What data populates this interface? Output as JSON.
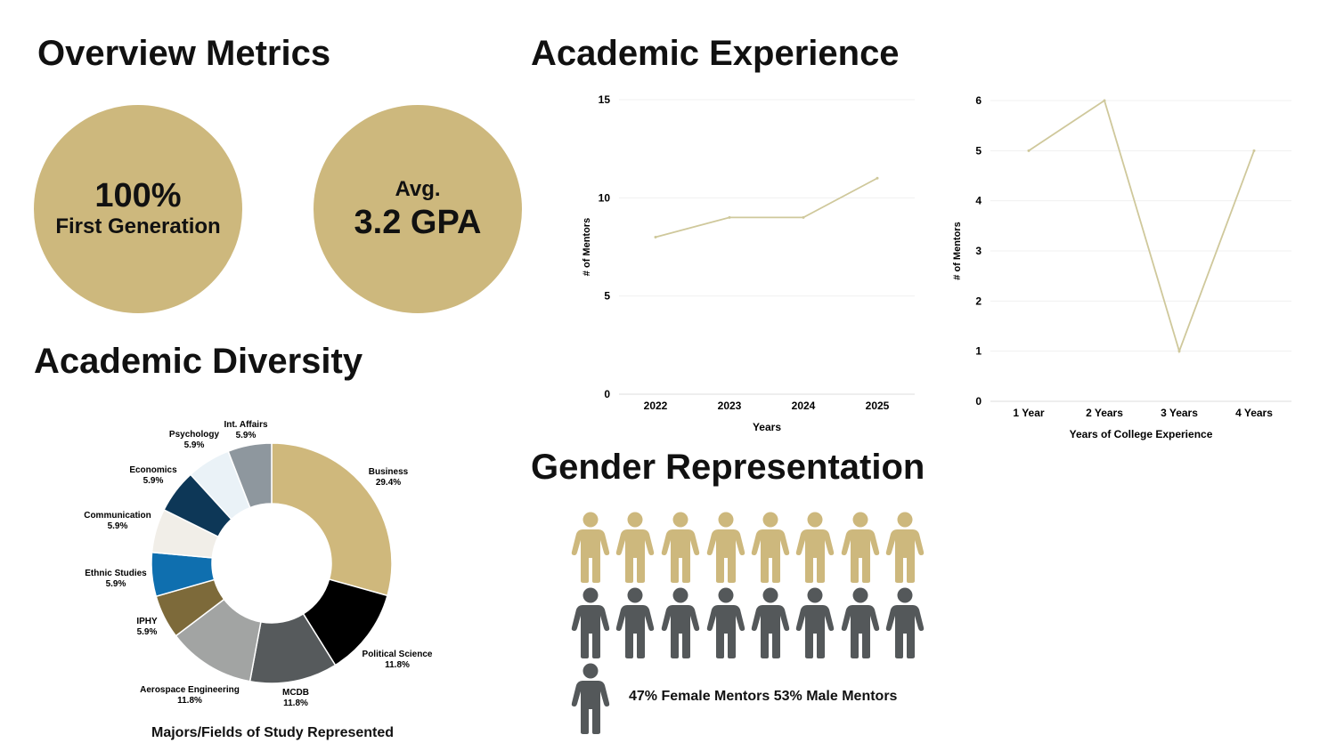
{
  "headings": {
    "overview": "Overview Metrics",
    "experience": "Academic Experience",
    "diversity": "Academic Diversity",
    "gender": "Gender Representation"
  },
  "metrics": [
    {
      "line1": "100%",
      "line2": "First Generation"
    },
    {
      "line1": "Avg.",
      "line2": "3.2 GPA"
    }
  ],
  "colors": {
    "gold": "#CDB87D",
    "gray": "#54585A",
    "line": "#CFC89B"
  },
  "chart_data": [
    {
      "type": "line",
      "categories": [
        "2022",
        "2023",
        "2024",
        "2025"
      ],
      "values": [
        8,
        9,
        9,
        11
      ],
      "xlabel": "Years",
      "ylabel": "# of Mentors",
      "ylim": [
        0,
        15
      ],
      "yticks": [
        0,
        5,
        10,
        15
      ],
      "grid": true
    },
    {
      "type": "line",
      "categories": [
        "1 Year",
        "2 Years",
        "3 Years",
        "4 Years"
      ],
      "values": [
        5,
        6,
        1,
        5
      ],
      "xlabel": "Years of College Experience",
      "ylabel": "# of Mentors",
      "ylim": [
        0,
        6
      ],
      "yticks": [
        0,
        1,
        2,
        3,
        4,
        5,
        6
      ],
      "grid": true
    },
    {
      "type": "pie",
      "donut": true,
      "title": "Majors/Fields of Study Represented",
      "slices": [
        {
          "label": "Business",
          "value": 29.4,
          "display": "29.4%",
          "color": "#CFB87C"
        },
        {
          "label": "Political Science",
          "value": 11.8,
          "display": "11.8%",
          "color": "#000000"
        },
        {
          "label": "MCDB",
          "value": 11.8,
          "display": "11.8%",
          "color": "#565A5C"
        },
        {
          "label": "Aerospace Engineering",
          "value": 11.8,
          "display": "11.8%",
          "color": "#A2A4A3"
        },
        {
          "label": "IPHY",
          "value": 5.9,
          "display": "5.9%",
          "color": "#7D6A3A"
        },
        {
          "label": "Ethnic Studies",
          "value": 5.9,
          "display": "5.9%",
          "color": "#0F6FAF"
        },
        {
          "label": "Communication",
          "value": 5.9,
          "display": "5.9%",
          "color": "#F1EEE8"
        },
        {
          "label": "Economics",
          "value": 5.9,
          "display": "5.9%",
          "color": "#0D3757"
        },
        {
          "label": "Psychology",
          "value": 5.9,
          "display": "5.9%",
          "color": "#EAF2F7"
        },
        {
          "label": "Int. Affairs",
          "value": 5.9,
          "display": "5.9%",
          "color": "#8E979E"
        }
      ]
    }
  ],
  "gender": {
    "female_count": 8,
    "male_count": 9,
    "caption": "47% Female Mentors 53% Male Mentors"
  }
}
